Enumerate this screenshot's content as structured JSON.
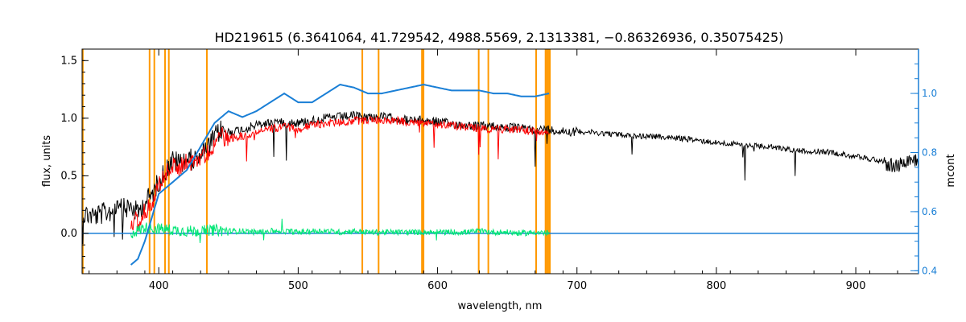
{
  "chart_data": {
    "type": "line",
    "title": "HD219615    (6.3641064, 41.729542, 4988.5569, 2.1313381, −0.86326936, 0.35075425)",
    "xlabel": "wavelength, nm",
    "ylabel": "flux, units",
    "ylabel_right": "mcont",
    "xlim": [
      345,
      945
    ],
    "ylim": [
      -0.35,
      1.6
    ],
    "ylim_right": [
      0.39,
      1.15
    ],
    "x_ticks": [
      400,
      500,
      600,
      700,
      800,
      900
    ],
    "x_tick_labels": [
      "400",
      "500",
      "600",
      "700",
      "800",
      "900"
    ],
    "y_ticks": [
      0.0,
      0.5,
      1.0,
      1.5
    ],
    "y_tick_labels": [
      "0.0",
      "0.5",
      "1.0",
      "1.5"
    ],
    "y_right_ticks": [
      0.4,
      0.6,
      0.8,
      1.0
    ],
    "y_right_tick_labels": [
      "0.4",
      "0.6",
      "0.8",
      "1.0"
    ],
    "grid": false,
    "colors": {
      "observed": "#000000",
      "model": "#ff0000",
      "residual": "#00e676",
      "continuum": "#1a7fd6",
      "masks": "#ff9900"
    },
    "mask_lines": [
      345.5,
      393.4,
      396.8,
      404.5,
      407.2,
      434.5,
      546,
      557.7,
      588.8,
      589.9,
      629.5,
      636.4,
      670.7,
      677.6,
      679.0,
      680.4
    ],
    "series": [
      {
        "role": "observed",
        "x": [
          345,
          355,
          365,
          375,
          380,
          385,
          390,
          395,
          400,
          405,
          410,
          415,
          420,
          425,
          430,
          435,
          440,
          445,
          450,
          460,
          470,
          480,
          490,
          500,
          510,
          520,
          530,
          540,
          550,
          560,
          570,
          580,
          590,
          600,
          610,
          620,
          630,
          640,
          650,
          660,
          670,
          680,
          700,
          720,
          740,
          760,
          780,
          800,
          820,
          840,
          860,
          880,
          900,
          910,
          920,
          930,
          935,
          940,
          945
        ],
        "y": [
          0.22,
          0.2,
          0.24,
          0.26,
          0.28,
          0.22,
          0.32,
          0.38,
          0.5,
          0.6,
          0.68,
          0.66,
          0.7,
          0.68,
          0.75,
          0.78,
          0.88,
          0.95,
          0.9,
          0.92,
          0.96,
          0.98,
          0.99,
          0.98,
          1.0,
          1.02,
          1.03,
          1.04,
          1.03,
          1.03,
          1.02,
          1.0,
          1.0,
          0.99,
          0.97,
          0.96,
          0.95,
          0.95,
          0.94,
          0.93,
          0.92,
          0.92,
          0.9,
          0.88,
          0.86,
          0.85,
          0.83,
          0.8,
          0.78,
          0.76,
          0.73,
          0.72,
          0.68,
          0.66,
          0.64,
          0.62,
          0.66,
          0.7,
          0.65
        ]
      },
      {
        "role": "model",
        "x": [
          380,
          385,
          390,
          395,
          400,
          405,
          410,
          415,
          420,
          425,
          430,
          435,
          440,
          445,
          450,
          460,
          470,
          480,
          490,
          500,
          510,
          520,
          530,
          540,
          550,
          560,
          570,
          580,
          590,
          600,
          610,
          620,
          630,
          640,
          650,
          660,
          670,
          680
        ],
        "y": [
          0.12,
          0.15,
          0.22,
          0.3,
          0.45,
          0.55,
          0.62,
          0.6,
          0.66,
          0.64,
          0.7,
          0.72,
          0.82,
          0.88,
          0.84,
          0.86,
          0.9,
          0.92,
          0.94,
          0.92,
          0.95,
          0.97,
          0.98,
          0.99,
          1.0,
          1.0,
          0.99,
          0.98,
          0.97,
          0.96,
          0.95,
          0.94,
          0.93,
          0.92,
          0.92,
          0.91,
          0.9,
          0.9
        ]
      },
      {
        "role": "residual",
        "x": [
          380,
          390,
          400,
          410,
          420,
          430,
          440,
          450,
          460,
          470,
          480,
          490,
          500,
          510,
          520,
          530,
          540,
          550,
          560,
          570,
          580,
          590,
          600,
          610,
          620,
          630,
          640,
          650,
          660,
          670,
          680
        ],
        "y": [
          0.0,
          0.05,
          0.04,
          0.03,
          0.02,
          0.02,
          0.03,
          0.02,
          0.02,
          0.01,
          0.02,
          0.02,
          0.01,
          0.02,
          0.02,
          0.01,
          0.02,
          0.01,
          0.01,
          0.01,
          0.01,
          0.01,
          0.01,
          0.01,
          0.01,
          0.02,
          0.01,
          0.01,
          0.0,
          0.01,
          0.0
        ]
      },
      {
        "role": "continuum_model",
        "x": [
          380,
          385,
          390,
          395,
          400,
          410,
          420,
          430,
          440,
          450,
          460,
          470,
          480,
          490,
          500,
          510,
          520,
          530,
          540,
          550,
          560,
          570,
          580,
          590,
          600,
          610,
          620,
          630,
          640,
          650,
          660,
          670,
          680
        ],
        "y": [
          0.42,
          0.44,
          0.5,
          0.58,
          0.66,
          0.7,
          0.74,
          0.82,
          0.9,
          0.94,
          0.92,
          0.94,
          0.97,
          1.0,
          0.97,
          0.97,
          1.0,
          1.03,
          1.02,
          1.0,
          1.0,
          1.01,
          1.02,
          1.03,
          1.02,
          1.01,
          1.01,
          1.01,
          1.0,
          1.0,
          0.99,
          0.99,
          1.0
        ]
      },
      {
        "role": "zero_line",
        "x": [
          345,
          945
        ],
        "y": [
          0.0,
          0.0
        ]
      }
    ]
  }
}
